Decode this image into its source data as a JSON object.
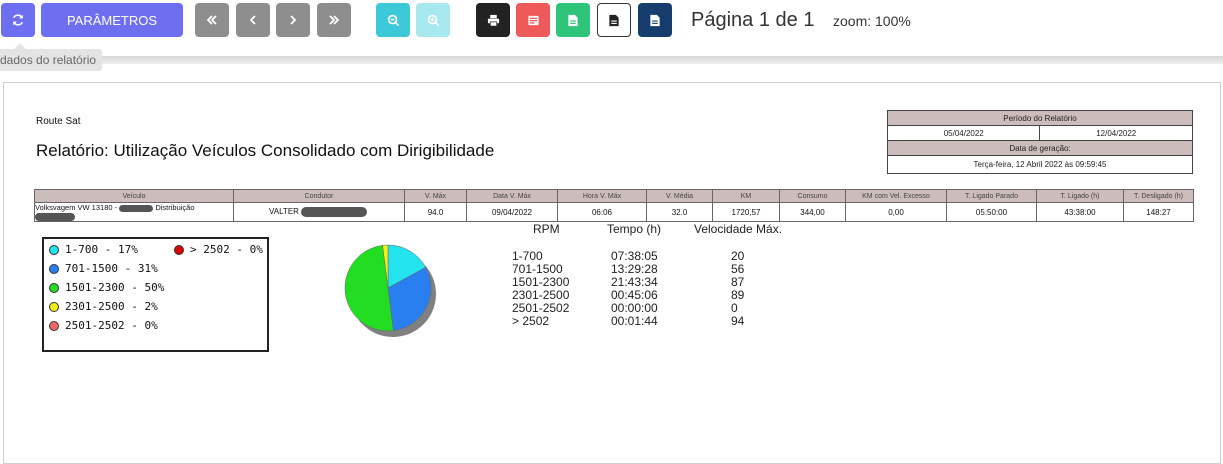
{
  "toolbar": {
    "params_label": "PARÂMETROS",
    "page_label": "Página 1 de 1",
    "zoom_label": "zoom: 100%",
    "tooltip": "dados do relatório"
  },
  "report": {
    "company": "Route Sat",
    "title": "Relatório: Utilização Veículos Consolidado com Dirigibilidade",
    "period_header": "Período do Relatório",
    "period_start": "05/04/2022",
    "period_end": "12/04/2022",
    "generation_header": "Data de geração:",
    "generation_date": "Terça-feira, 12 Abril 2022 às 09:59:45"
  },
  "table": {
    "headers": [
      "Veículo",
      "Condutor",
      "V. Máx",
      "Data V. Máx",
      "Hora V. Máx",
      "V. Média",
      "KM",
      "Consumo",
      "KM com Vel. Excesso",
      "T. Ligado Parado",
      "T. Ligado (h)",
      "T. Desligado (h)"
    ],
    "row": {
      "vehicle_a": "Volksvagem VW 13180 -",
      "vehicle_b": "Distribuição",
      "driver": "VALTER",
      "vmax": "94.0",
      "date_vmax": "09/04/2022",
      "hour_vmax": "06:06",
      "vavg": "32.0",
      "km": "1720,57",
      "consumo": "344,00",
      "km_excesso": "0,00",
      "ligado_parado": "05:50:00",
      "ligado": "43:38:00",
      "desligado": "148:27"
    }
  },
  "legend": {
    "items": [
      "1-700 - 17%",
      "701-1500 - 31%",
      "1501-2300 - 50%",
      "2301-2500 - 2%",
      "2501-2502 - 0%",
      "> 2502 - 0%"
    ],
    "colors": [
      "#22e3ee",
      "#2a7ff0",
      "#22dd22",
      "#f2ef12",
      "#ee6666",
      "#dd0000"
    ]
  },
  "chart_data": {
    "type": "pie",
    "categories": [
      "1-700",
      "701-1500",
      "1501-2300",
      "2301-2500",
      "2501-2502",
      "> 2502"
    ],
    "values": [
      17,
      31,
      50,
      2,
      0,
      0
    ]
  },
  "rpm": {
    "headers": [
      "RPM",
      "Tempo (h)",
      "Velocidade Máx."
    ],
    "rows": [
      [
        "1-700",
        "07:38:05",
        "20"
      ],
      [
        "701-1500",
        "13:29:28",
        "56"
      ],
      [
        "1501-2300",
        "21:43:34",
        "87"
      ],
      [
        "2301-2500",
        "00:45:06",
        "89"
      ],
      [
        "2501-2502",
        "00:00:00",
        "0"
      ],
      [
        "> 2502",
        "00:01:44",
        "94"
      ]
    ]
  }
}
